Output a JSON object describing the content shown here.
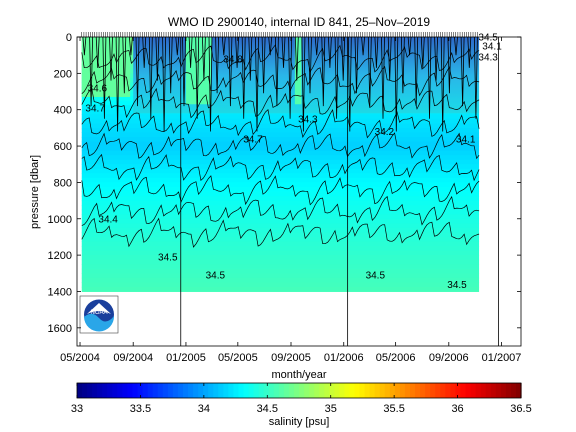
{
  "chart_data": {
    "type": "heatmap",
    "title": "WMO ID 2900140, internal ID 841, 25–Nov–2019",
    "xlabel": "month/year",
    "ylabel": "pressure [dbar]",
    "x_range": [
      "2004-04-24",
      "2007-02-15"
    ],
    "x_ticks": [
      "05/2004",
      "09/2004",
      "01/2005",
      "05/2005",
      "09/2005",
      "01/2006",
      "05/2006",
      "09/2006",
      "01/2007"
    ],
    "y_range": [
      0,
      1700
    ],
    "y_reversed": true,
    "y_ticks": [
      0,
      200,
      400,
      600,
      800,
      1000,
      1200,
      1400,
      1600
    ],
    "data_extent": {
      "x_start": "2004-05-05",
      "x_end": "2006-11-10",
      "pressure_max": 1400
    },
    "reference_dates": [
      "2004-12-20",
      "2006-01-10",
      "2006-12-25"
    ],
    "colorbar": {
      "label": "salinity [psu]",
      "ticks": [
        "33",
        "33.5",
        "34",
        "34.5",
        "35",
        "35.5",
        "36",
        "36.5"
      ],
      "range": [
        33,
        36.5
      ],
      "colormap": "jet"
    },
    "salinity_profile": [
      {
        "pressure": 0,
        "salinity": 34.75
      },
      {
        "pressure": 200,
        "salinity": 34.55
      },
      {
        "pressure": 400,
        "salinity": 34.25
      },
      {
        "pressure": 600,
        "salinity": 34.15
      },
      {
        "pressure": 800,
        "salinity": 34.3
      },
      {
        "pressure": 1000,
        "salinity": 34.4
      },
      {
        "pressure": 1200,
        "salinity": 34.48
      },
      {
        "pressure": 1400,
        "salinity": 34.55
      }
    ],
    "contour_levels": [
      33.9,
      34.0,
      34.1,
      34.2,
      34.3,
      34.4,
      34.5,
      34.6,
      34.7
    ],
    "contour_labels": [
      {
        "text": "34.6",
        "date": "2004-06-10",
        "pressure": 300
      },
      {
        "text": "34.7",
        "date": "2004-06-05",
        "pressure": 410
      },
      {
        "text": "34.4",
        "date": "2004-07-05",
        "pressure": 1020
      },
      {
        "text": "34.5",
        "date": "2004-11-20",
        "pressure": 1230
      },
      {
        "text": "34.5",
        "date": "2005-03-10",
        "pressure": 1330
      },
      {
        "text": "34.8",
        "date": "2005-04-20",
        "pressure": 140
      },
      {
        "text": "34.7",
        "date": "2005-06-05",
        "pressure": 580
      },
      {
        "text": "34.5",
        "date": "2006-03-15",
        "pressure": 1330
      },
      {
        "text": "34.5",
        "date": "2006-09-20",
        "pressure": 1380
      },
      {
        "text": "34.2",
        "date": "2006-04-05",
        "pressure": 540
      },
      {
        "text": "34.3",
        "date": "2005-10-10",
        "pressure": 470
      },
      {
        "text": "34.1",
        "date": "2006-10-10",
        "pressure": 580
      },
      {
        "text": "34.3",
        "date": "2006-12-01",
        "pressure": 130
      },
      {
        "text": "34.5",
        "date": "2006-12-01",
        "pressure": 20
      },
      {
        "text": "34.1",
        "date": "2006-12-10",
        "pressure": 70
      }
    ]
  },
  "logo": {
    "text": "NOAA"
  }
}
